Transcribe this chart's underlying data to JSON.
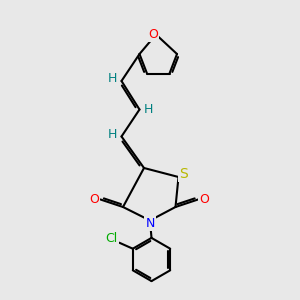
{
  "bg_color": "#e8e8e8",
  "bond_color": "#000000",
  "bond_width": 1.5,
  "dbo": 0.07,
  "atom_colors": {
    "O": "#ff0000",
    "S": "#b8b800",
    "N": "#0000ff",
    "Cl": "#00aa00",
    "H": "#008080",
    "C": "#000000"
  },
  "font_size": 9
}
